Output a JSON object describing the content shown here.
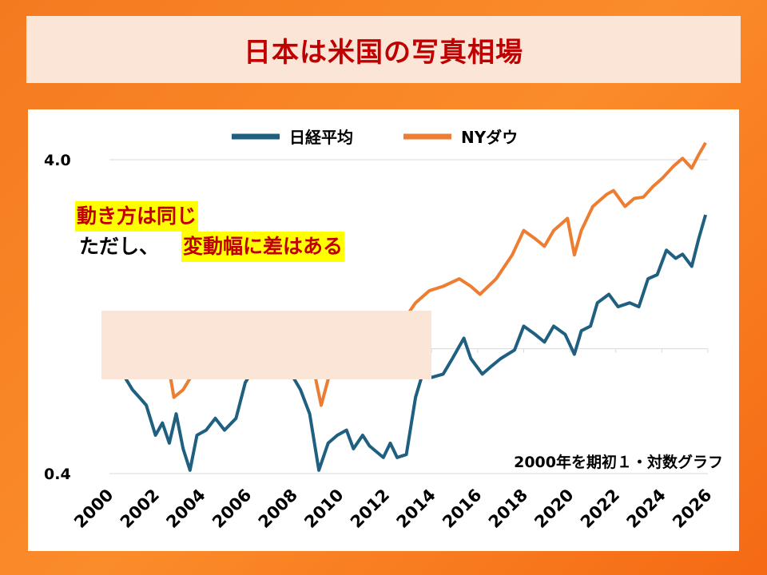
{
  "title": "日本は米国の写真相場",
  "annotation": {
    "line1": "動き方は同じ",
    "line2_plain": "ただし、",
    "line2_highlight": "変動幅に差はある"
  },
  "chart_data": {
    "type": "line",
    "title": "",
    "note": "2000年を期初１・対数グラフ",
    "yscale": "log",
    "ylim": [
      0.4,
      4.0
    ],
    "ytick_labels": [
      "4.0",
      "0.4"
    ],
    "yticks": [
      4.0,
      0.4
    ],
    "gridlines": [
      4.0,
      1.0,
      0.4
    ],
    "xlim": [
      2000,
      2026
    ],
    "xtick_labels": [
      "2000",
      "2002",
      "2004",
      "2006",
      "2008",
      "2010",
      "2012",
      "2014",
      "2016",
      "2018",
      "2020",
      "2022",
      "2024",
      "2026"
    ],
    "legend_position": "top",
    "series": [
      {
        "name": "日経平均",
        "color": "#1f5f80",
        "x": [
          2000.0,
          2000.2,
          2000.5,
          2001.0,
          2001.3,
          2001.6,
          2002.0,
          2002.3,
          2002.6,
          2002.9,
          2003.2,
          2003.5,
          2003.8,
          2004.2,
          2004.6,
          2005.0,
          2005.5,
          2005.9,
          2006.3,
          2006.6,
          2007.0,
          2007.5,
          2007.9,
          2008.3,
          2008.7,
          2009.1,
          2009.5,
          2009.9,
          2010.3,
          2010.6,
          2011.0,
          2011.3,
          2011.9,
          2012.2,
          2012.5,
          2012.9,
          2013.3,
          2013.6,
          2014.0,
          2014.5,
          2014.9,
          2015.4,
          2015.7,
          2016.2,
          2016.6,
          2017.0,
          2017.6,
          2018.0,
          2018.5,
          2018.9,
          2019.3,
          2019.8,
          2020.2,
          2020.5,
          2020.9,
          2021.2,
          2021.7,
          2022.1,
          2022.6,
          2023.0,
          2023.4,
          2023.8,
          2024.2,
          2024.6,
          2024.9,
          2025.3,
          2025.6,
          2025.9
        ],
        "values": [
          1.02,
          1.04,
          0.85,
          0.74,
          0.7,
          0.66,
          0.53,
          0.58,
          0.5,
          0.62,
          0.48,
          0.41,
          0.53,
          0.55,
          0.6,
          0.55,
          0.6,
          0.78,
          0.87,
          0.81,
          0.88,
          0.92,
          0.83,
          0.74,
          0.62,
          0.41,
          0.5,
          0.53,
          0.55,
          0.48,
          0.53,
          0.49,
          0.45,
          0.5,
          0.45,
          0.46,
          0.7,
          0.83,
          0.81,
          0.83,
          0.93,
          1.08,
          0.93,
          0.83,
          0.88,
          0.93,
          0.99,
          1.18,
          1.11,
          1.05,
          1.18,
          1.11,
          0.96,
          1.14,
          1.18,
          1.4,
          1.49,
          1.36,
          1.4,
          1.36,
          1.67,
          1.72,
          2.06,
          1.94,
          2.0,
          1.83,
          2.24,
          2.67
        ]
      },
      {
        "name": "NYダウ",
        "color": "#ed7d31",
        "x": [
          2000.0,
          2000.3,
          2001.0,
          2001.5,
          2001.7,
          2002.0,
          2002.6,
          2002.8,
          2003.2,
          2003.7,
          2004.0,
          2004.6,
          2005.0,
          2005.6,
          2006.0,
          2006.6,
          2007.0,
          2007.5,
          2007.8,
          2008.3,
          2008.7,
          2009.2,
          2009.6,
          2010.0,
          2010.4,
          2010.7,
          2011.3,
          2011.7,
          2012.2,
          2012.7,
          2013.3,
          2013.9,
          2014.5,
          2015.2,
          2015.7,
          2016.1,
          2016.8,
          2017.5,
          2018.0,
          2018.5,
          2018.9,
          2019.3,
          2019.9,
          2020.2,
          2020.5,
          2021.0,
          2021.6,
          2021.9,
          2022.4,
          2022.8,
          2023.2,
          2023.6,
          2024.0,
          2024.5,
          2024.9,
          2025.3,
          2025.6,
          2025.9
        ],
        "values": [
          0.93,
          1.02,
          0.99,
          0.96,
          0.83,
          0.96,
          0.85,
          0.7,
          0.74,
          0.85,
          0.93,
          0.96,
          0.99,
          0.96,
          1.0,
          1.05,
          1.14,
          1.25,
          1.29,
          1.11,
          0.99,
          0.66,
          0.85,
          0.96,
          1.05,
          0.99,
          1.18,
          0.99,
          1.18,
          1.21,
          1.4,
          1.53,
          1.58,
          1.67,
          1.58,
          1.49,
          1.67,
          1.99,
          2.38,
          2.24,
          2.12,
          2.38,
          2.6,
          1.99,
          2.38,
          2.84,
          3.1,
          3.19,
          2.84,
          3.01,
          3.04,
          3.28,
          3.48,
          3.81,
          4.04,
          3.76,
          4.15,
          4.53
        ]
      }
    ]
  }
}
